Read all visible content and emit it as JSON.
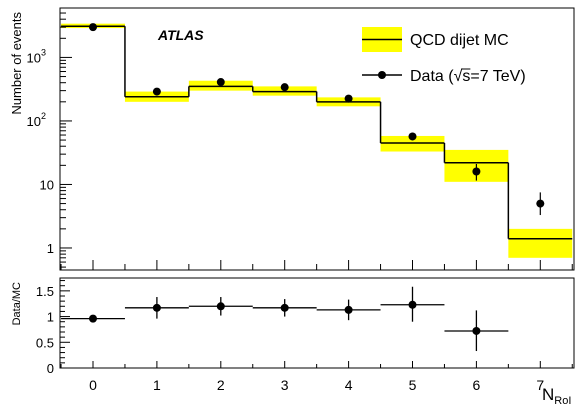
{
  "chart_data": [
    {
      "type": "step-histogram",
      "x": [
        0,
        1,
        2,
        3,
        4,
        5,
        6,
        7
      ],
      "xlabel_main": "N",
      "xlabel_sub": "RoI",
      "ylabel": "Number of events",
      "ylog": true,
      "ylim": [
        0.45,
        6000
      ],
      "y_ticks": [
        {
          "v": 1,
          "label": "1"
        },
        {
          "v": 10,
          "label": "10"
        },
        {
          "v": 100,
          "label": "10",
          "exp": "2"
        },
        {
          "v": 1000,
          "label": "10",
          "exp": "3"
        }
      ],
      "annotation": "ATLAS",
      "mc": {
        "name": "QCD dijet MC",
        "values": [
          3100,
          240,
          350,
          290,
          200,
          45,
          22,
          1.4
        ],
        "err_lo": [
          2900,
          200,
          300,
          250,
          170,
          33,
          11,
          0.7
        ],
        "err_hi": [
          3400,
          290,
          430,
          350,
          235,
          58,
          35,
          2.0
        ]
      },
      "data": {
        "name_prefix": "Data (",
        "name_sqrt": "√",
        "name_suffix": "s=7 TeV)",
        "values": [
          3000,
          290,
          410,
          340,
          225,
          57,
          16,
          5
        ],
        "err_lo": [
          2950,
          270,
          390,
          320,
          210,
          50,
          11.5,
          3.3
        ],
        "err_hi": [
          3060,
          310,
          430,
          360,
          240,
          65,
          21,
          7.5
        ]
      },
      "legend_position": "top-right"
    },
    {
      "type": "ratio",
      "x": [
        0,
        1,
        2,
        3,
        4,
        5,
        6
      ],
      "ylabel": "Data/MC",
      "ylim": [
        0,
        1.75
      ],
      "y_ticks": [
        {
          "v": 0,
          "label": "0"
        },
        {
          "v": 0.5,
          "label": "0.5"
        },
        {
          "v": 1,
          "label": "1"
        },
        {
          "v": 1.5,
          "label": "1.5"
        }
      ],
      "values": [
        0.96,
        1.17,
        1.2,
        1.17,
        1.13,
        1.23,
        0.72
      ],
      "err_lo": [
        0.93,
        0.96,
        1.02,
        1.0,
        0.93,
        0.9,
        0.33
      ],
      "err_hi": [
        0.99,
        1.38,
        1.38,
        1.34,
        1.33,
        1.58,
        1.12
      ]
    }
  ],
  "colors": {
    "band": "#ffff00",
    "line": "#000000"
  }
}
